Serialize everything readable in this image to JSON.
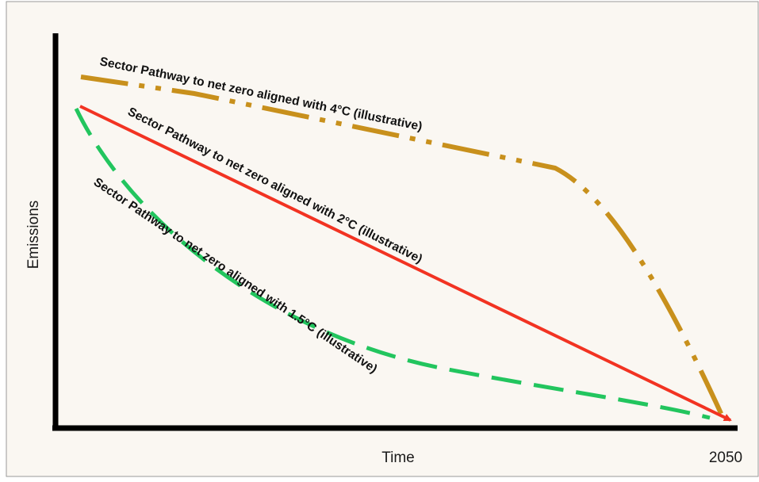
{
  "colors": {
    "background": "#faf7f2",
    "frame": "#9a9a9a",
    "axis": "#000000",
    "pathway_4c": "#c8901c",
    "pathway_2c": "#f23322",
    "pathway_1_5c": "#22c55e"
  },
  "axes": {
    "y_label": "Emissions",
    "x_label": "Time",
    "x_end_tick": "2050"
  },
  "pathways": [
    {
      "id": "4c",
      "label": "Sector Pathway to net zero aligned with 4°C (illustrative)",
      "style": "dash-dot-dot"
    },
    {
      "id": "2c",
      "label": "Sector Pathway to net zero aligned with 2°C (illustrative)",
      "style": "solid-arrow"
    },
    {
      "id": "1_5c",
      "label": "Sector Pathway to net zero aligned with 1.5°C (illustrative)",
      "style": "dashed"
    }
  ]
}
